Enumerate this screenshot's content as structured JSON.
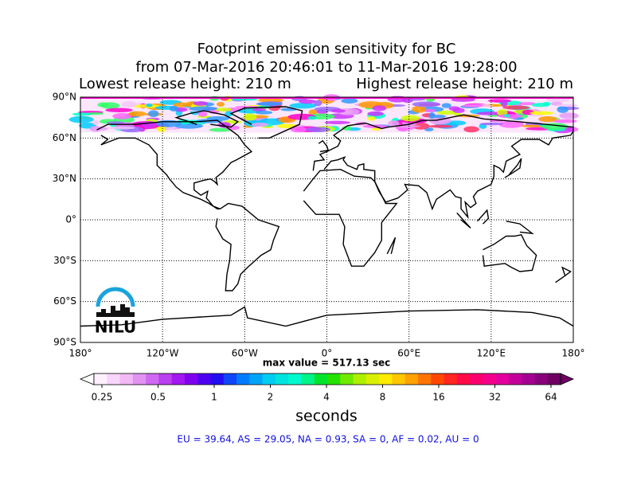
{
  "title_lines": [
    "Footprint emission sensitivity for BC",
    "from 07-Mar-2016 20:46:01 to 11-Mar-2016 19:28:00"
  ],
  "release_heights": {
    "lowest": "Lowest release height: 210 m",
    "highest": "Highest release height: 210 m"
  },
  "map": {
    "lat_ticks": [
      {
        "value": 90,
        "label": "90°N"
      },
      {
        "value": 60,
        "label": "60°N"
      },
      {
        "value": 30,
        "label": "30°N"
      },
      {
        "value": 0,
        "label": "0°"
      },
      {
        "value": -30,
        "label": "30°S"
      },
      {
        "value": -60,
        "label": "60°S"
      },
      {
        "value": -90,
        "label": "90°S"
      }
    ],
    "lon_ticks": [
      {
        "value": -180,
        "label": "180°"
      },
      {
        "value": -120,
        "label": "120°W"
      },
      {
        "value": -60,
        "label": "60°W"
      },
      {
        "value": 0,
        "label": "0°"
      },
      {
        "value": 60,
        "label": "60°E"
      },
      {
        "value": 120,
        "label": "120°E"
      },
      {
        "value": 180,
        "label": "180°"
      }
    ],
    "max_value_label": "max value = 517.13 sec",
    "logo": "NILU"
  },
  "colorbar": {
    "ticks": [
      0.25,
      0.5,
      1,
      2,
      4,
      8,
      16,
      32,
      64
    ],
    "log_scale": true,
    "label": "seconds"
  },
  "region_summary": "EU = 39.64,  AS = 29.05,  NA = 0.93,  SA = 0,  AF = 0.02,  AU = 0"
}
